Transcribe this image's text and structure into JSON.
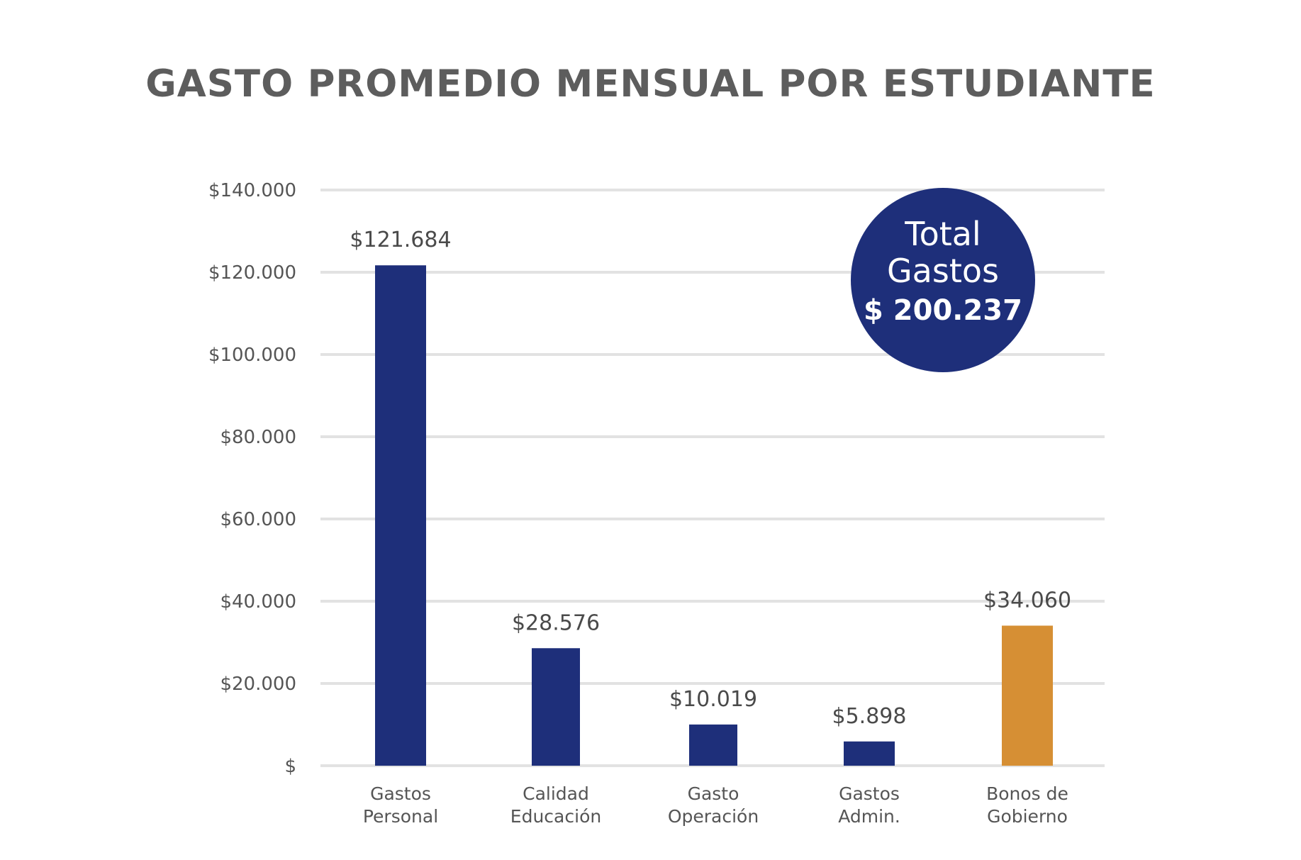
{
  "chart_data": {
    "type": "bar",
    "title": "GASTO PROMEDIO MENSUAL POR ESTUDIANTE",
    "xlabel": "",
    "ylabel": "",
    "ylim": [
      0,
      140000
    ],
    "yticks": [
      {
        "value": 140000,
        "label": "$140.000"
      },
      {
        "value": 120000,
        "label": "$120.000"
      },
      {
        "value": 100000,
        "label": "$100.000"
      },
      {
        "value": 80000,
        "label": "$80.000"
      },
      {
        "value": 60000,
        "label": "$60.000"
      },
      {
        "value": 40000,
        "label": "$40.000"
      },
      {
        "value": 20000,
        "label": "$20.000"
      },
      {
        "value": 0,
        "label": "$"
      }
    ],
    "grid": true,
    "categories": [
      [
        "Gastos",
        "Personal"
      ],
      [
        "Calidad",
        "Educación"
      ],
      [
        "Gasto",
        "Operación"
      ],
      [
        "Gastos",
        "Admin."
      ],
      [
        "Bonos de",
        "Gobierno"
      ]
    ],
    "values": [
      121684,
      28576,
      10019,
      5898,
      34060
    ],
    "data_labels": [
      "$121.684",
      "$28.576",
      "$10.019",
      "$5.898",
      "$34.060"
    ],
    "colors": [
      "#1e2f7a",
      "#1e2f7a",
      "#1e2f7a",
      "#1e2f7a",
      "#d68f34"
    ]
  },
  "total_badge": {
    "line1": "Total",
    "line2": "Gastos",
    "value": "$ 200.237",
    "color": "#1e2f7a"
  }
}
